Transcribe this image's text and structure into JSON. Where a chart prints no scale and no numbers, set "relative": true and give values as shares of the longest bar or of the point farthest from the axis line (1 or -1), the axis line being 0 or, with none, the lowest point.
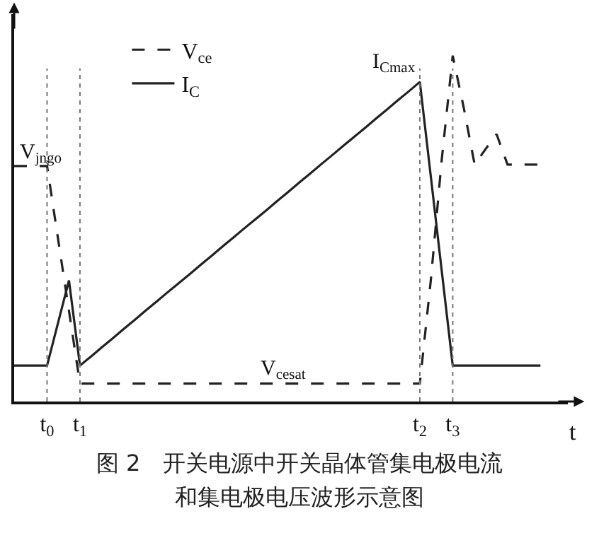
{
  "chart_data": {
    "type": "line",
    "relative": true,
    "title": "图 2　开关电源中开关晶体管集电极电流和集电极电压波形示意图",
    "xlabel": "t",
    "categories": [
      null,
      null,
      null,
      "t$_{0}$",
      null,
      null,
      "t$_{1}$",
      null,
      null,
      null,
      null,
      null,
      null,
      null,
      null,
      null,
      null,
      null,
      null,
      null,
      null,
      null,
      null,
      null,
      null,
      null,
      null,
      null,
      null,
      null,
      null,
      null,
      null,
      null,
      null,
      null,
      null,
      "t$_{2}$",
      null,
      null,
      "t$_{3}$",
      null,
      null,
      null,
      null,
      null,
      null,
      null,
      null
    ],
    "series": [
      {
        "name": "V$_{ce}$",
        "color": "#222222",
        "line_style": "dashed",
        "values": [
          0.681,
          0.681,
          0.681,
          0.681,
          0.471,
          0.262,
          0.052,
          0.052,
          0.052,
          0.052,
          0.052,
          0.052,
          0.052,
          0.052,
          0.052,
          0.052,
          0.052,
          0.052,
          0.052,
          0.052,
          0.052,
          0.052,
          0.052,
          0.052,
          0.052,
          0.052,
          0.052,
          0.052,
          0.052,
          0.052,
          0.052,
          0.052,
          0.052,
          0.052,
          0.052,
          0.052,
          0.052,
          0.052,
          0.35,
          0.7,
          1,
          0.85,
          0.685,
          0.73,
          0.773,
          0.685,
          0.685,
          0.685,
          0.685
        ]
      },
      {
        "name": "I$_{C}$",
        "color": "#222222",
        "line_style": "solid",
        "values": [
          0.104,
          0.104,
          0.104,
          0.104,
          0.227,
          0.35,
          0.104,
          0.13,
          0.157,
          0.183,
          0.21,
          0.236,
          0.263,
          0.289,
          0.316,
          0.342,
          0.368,
          0.395,
          0.421,
          0.448,
          0.474,
          0.501,
          0.527,
          0.553,
          0.58,
          0.606,
          0.633,
          0.659,
          0.686,
          0.712,
          0.739,
          0.765,
          0.791,
          0.818,
          0.844,
          0.871,
          0.897,
          0.924,
          0.651,
          0.377,
          0.104,
          0.104,
          0.104,
          0.104,
          0.104,
          0.104,
          0.104,
          0.104,
          0.104
        ]
      }
    ],
    "ref_lines": [
      {
        "axis": "x",
        "value": "t$_{0}$",
        "line_style": "dotted",
        "color": "#777777"
      },
      {
        "axis": "x",
        "value": "t$_{1}$",
        "line_style": "dotted",
        "color": "#777777"
      },
      {
        "axis": "x",
        "value": "t$_{2}$",
        "line_style": "dotted",
        "color": "#777777"
      },
      {
        "axis": "x",
        "value": "t$_{3}$",
        "line_style": "dotted",
        "color": "#777777"
      }
    ],
    "annotations": [
      "V$_{jngo}$",
      "V$_{cesat}$",
      {
        "text": "I$_{Cmax}$",
        "x": "t$_{2}$",
        "y": 0.924
      }
    ],
    "legend": "top left",
    "marker": "none"
  }
}
